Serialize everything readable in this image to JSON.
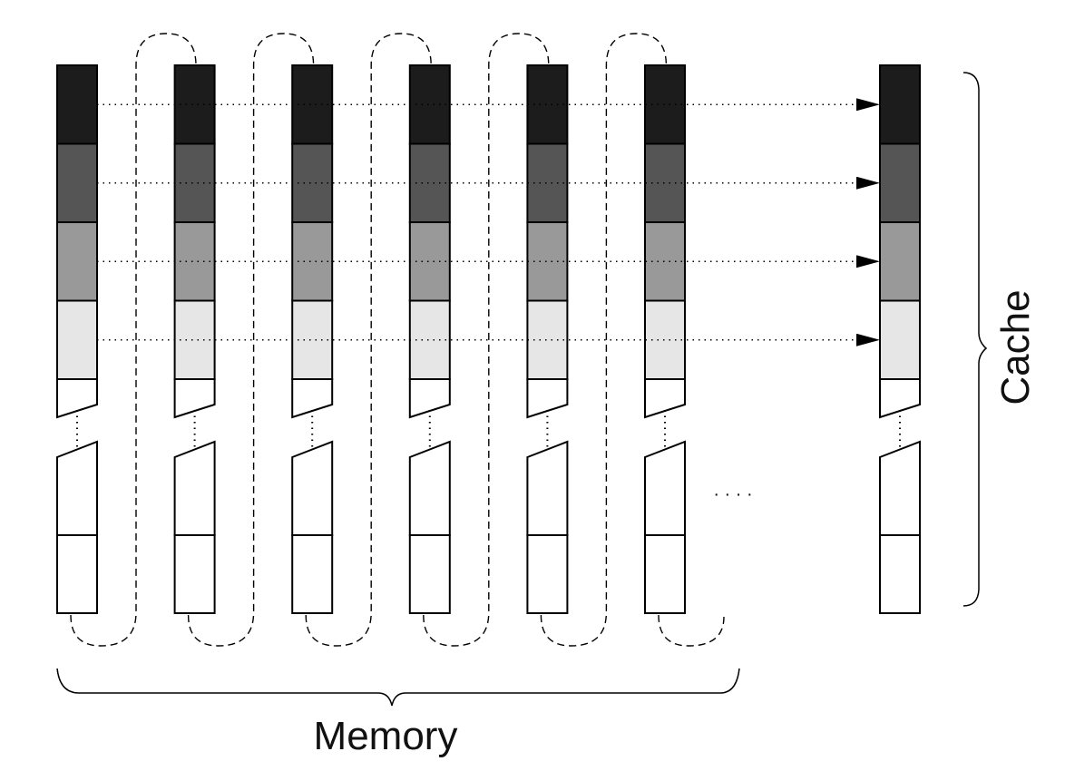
{
  "labels": {
    "memory": "Memory",
    "cache": "Cache",
    "ellipsis": "· · · ·"
  },
  "colors": {
    "shade_1": "#1c1c1c",
    "shade_2": "#555555",
    "shade_3": "#999999",
    "shade_4": "#e6e6e6",
    "empty": "#ffffff",
    "stroke": "#000000"
  },
  "structure": {
    "memory_columns": 6,
    "cache_columns": 1,
    "filled_blocks_per_column": 4
  }
}
